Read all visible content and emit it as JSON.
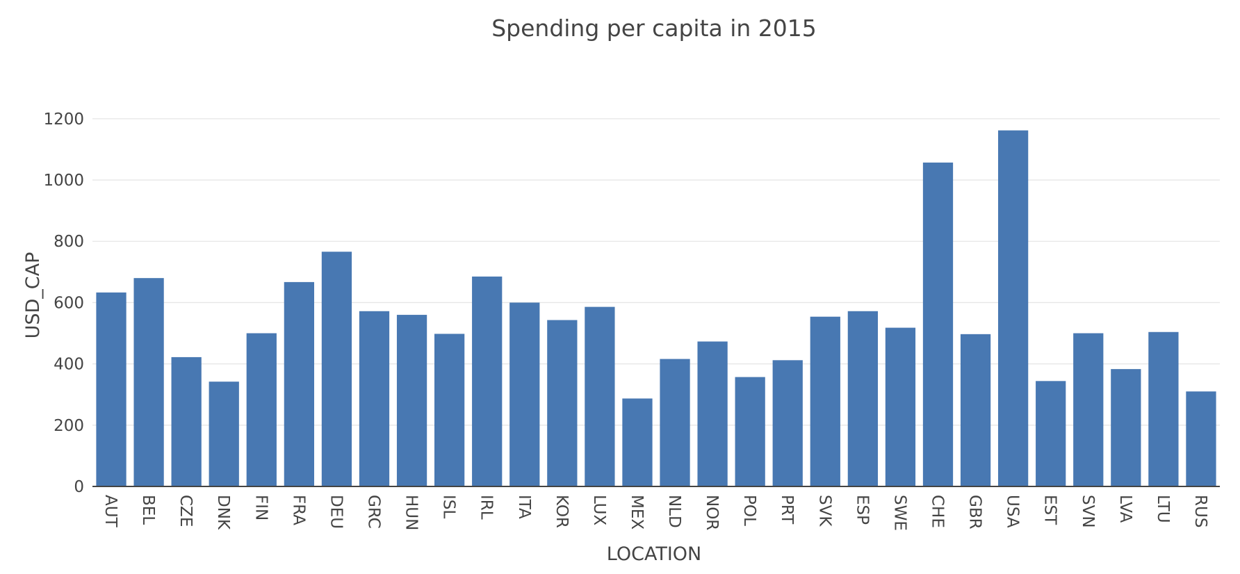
{
  "chart_data": {
    "type": "bar",
    "title": "Spending per capita in 2015",
    "xlabel": "LOCATION",
    "ylabel": "USD_CAP",
    "ylim": [
      0,
      1270
    ],
    "yticks": [
      0,
      200,
      400,
      600,
      800,
      1000,
      1200
    ],
    "grid": true,
    "bar_color": "#4878b2",
    "categories": [
      "AUT",
      "BEL",
      "CZE",
      "DNK",
      "FIN",
      "FRA",
      "DEU",
      "GRC",
      "HUN",
      "ISL",
      "IRL",
      "ITA",
      "KOR",
      "LUX",
      "MEX",
      "NLD",
      "NOR",
      "POL",
      "PRT",
      "SVK",
      "ESP",
      "SWE",
      "CHE",
      "GBR",
      "USA",
      "EST",
      "SVN",
      "LVA",
      "LTU",
      "RUS"
    ],
    "values": [
      633,
      680,
      422,
      342,
      500,
      667,
      766,
      572,
      560,
      498,
      685,
      600,
      543,
      586,
      287,
      416,
      473,
      357,
      412,
      554,
      572,
      518,
      1057,
      497,
      1162,
      344,
      500,
      383,
      504,
      310
    ]
  }
}
